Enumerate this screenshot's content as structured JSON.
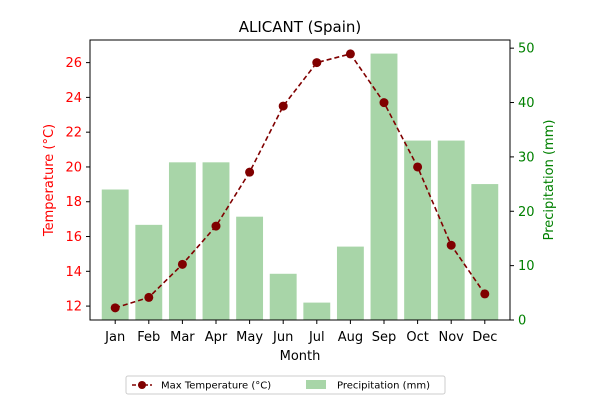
{
  "chart_data": {
    "type": "bar+line",
    "title": "ALICANT (Spain)",
    "xlabel": "Month",
    "ylabel_left": "Temperature (°C)",
    "ylabel_right": "Precipitation (mm)",
    "categories": [
      "Jan",
      "Feb",
      "Mar",
      "Apr",
      "May",
      "Jun",
      "Jul",
      "Aug",
      "Sep",
      "Oct",
      "Nov",
      "Dec"
    ],
    "series": [
      {
        "name": "Max Temperature (°C)",
        "kind": "line",
        "axis": "left",
        "color": "#800000",
        "values": [
          11.9,
          12.5,
          14.4,
          16.6,
          19.7,
          23.5,
          26.0,
          26.5,
          23.7,
          20.0,
          15.5,
          12.7
        ]
      },
      {
        "name": "Precipitation (mm)",
        "kind": "bar",
        "axis": "right",
        "color": "#a8d5a8",
        "values": [
          24,
          17.5,
          29,
          29,
          19,
          8.5,
          3.2,
          13.5,
          49,
          33,
          33,
          25
        ]
      }
    ],
    "ylim_left": [
      11.2,
      27.3
    ],
    "yticks_left": [
      12,
      14,
      16,
      18,
      20,
      22,
      24,
      26
    ],
    "ylim_right": [
      0,
      51.5
    ],
    "yticks_right": [
      0,
      10,
      20,
      30,
      40,
      50
    ],
    "left_axis_color": "#ff0000",
    "right_axis_color": "#008000",
    "grid": false,
    "legend_placement": "bottom-center"
  }
}
